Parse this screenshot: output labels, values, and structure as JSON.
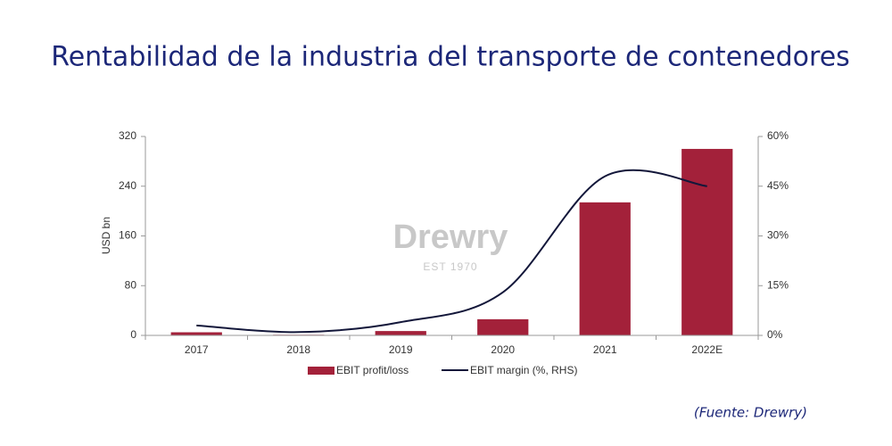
{
  "chart_data": {
    "type": "bar-line",
    "title": "Rentabilidad de la industria del transporte de contenedores",
    "ylabel": "USD bn",
    "categories": [
      "2017",
      "2018",
      "2019",
      "2020",
      "2021",
      "2022E"
    ],
    "series": [
      {
        "name": "EBIT profit/loss",
        "type": "bar",
        "color": "#a3213a",
        "values": [
          5,
          1,
          7,
          26,
          214,
          300
        ]
      },
      {
        "name": "EBIT margin (%, RHS)",
        "type": "line",
        "color": "#13173a",
        "axis": "y2",
        "values": [
          3,
          1,
          4,
          13,
          48,
          45
        ]
      }
    ],
    "ylim": [
      0,
      320
    ],
    "yticks": [
      0,
      80,
      160,
      240,
      320
    ],
    "y2lim": [
      0,
      60
    ],
    "y2ticks": [
      {
        "value": 0,
        "label": "0%"
      },
      {
        "value": 15,
        "label": "15%"
      },
      {
        "value": 30,
        "label": "30%"
      },
      {
        "value": 45,
        "label": "45%"
      },
      {
        "value": 60,
        "label": "60%"
      }
    ],
    "grid": false,
    "watermark": [
      "Drewry",
      "EST 1970"
    ],
    "source": "(Fuente: Drewry)"
  }
}
